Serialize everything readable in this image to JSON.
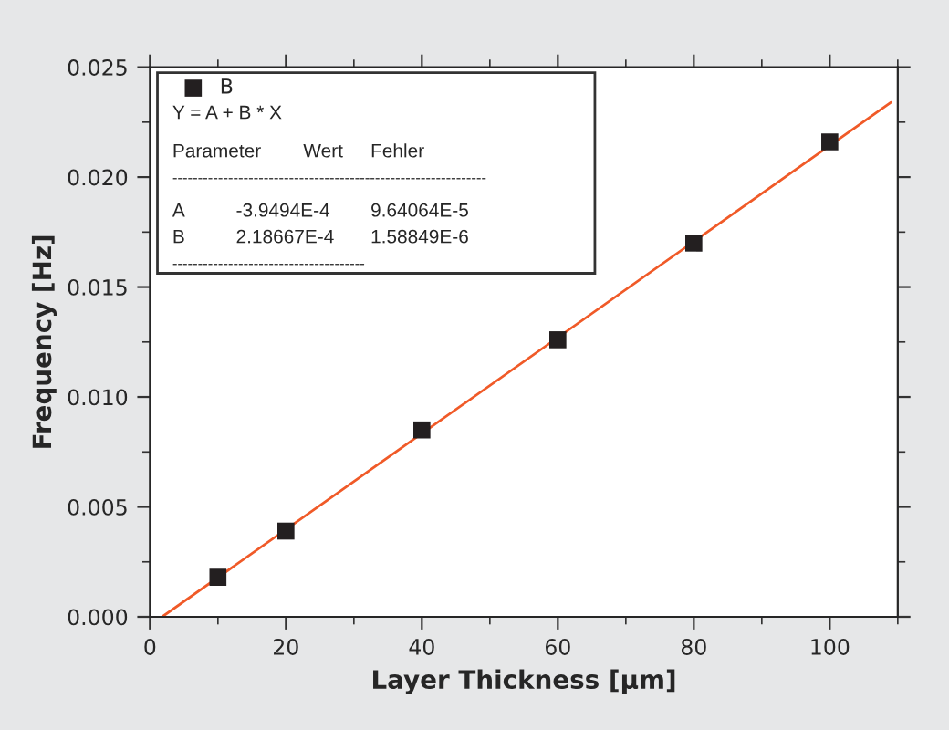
{
  "chart_data": {
    "type": "scatter",
    "xlabel": "Layer Thickness [µm]",
    "ylabel": "Frequency [Hz]",
    "xlim": [
      0,
      110
    ],
    "xticks": [
      0,
      20,
      40,
      60,
      80,
      100
    ],
    "ylim": [
      0,
      0.025
    ],
    "yticks": [
      {
        "value": 0,
        "label": "0.000"
      },
      {
        "value": 0.005,
        "label": "0.005"
      },
      {
        "value": 0.01,
        "label": "0.010"
      },
      {
        "value": 0.015,
        "label": "0.015"
      },
      {
        "value": 0.02,
        "label": "0.020"
      },
      {
        "value": 0.025,
        "label": "0.025"
      }
    ],
    "grid": false,
    "legend": "top left",
    "series": [
      {
        "name": "B",
        "color": "#231f20",
        "marker": "square",
        "x": [
          10,
          20,
          40,
          60,
          80,
          100
        ],
        "values": [
          0.0018,
          0.0039,
          0.0085,
          0.0126,
          0.017,
          0.0216
        ]
      },
      {
        "type": "line",
        "color": "#f05a28",
        "x": [
          1.8,
          109
        ],
        "values": [
          0,
          0.0234
        ]
      }
    ],
    "annotations": [
      "Y = A + B * X",
      "Parameter   Wert   Fehler",
      "--------------------------------------------------------------",
      "A   -3.9494E-4   9.64064E-5",
      "B   2.18667E-4   1.58849E-6",
      "--------------------------------------"
    ]
  }
}
